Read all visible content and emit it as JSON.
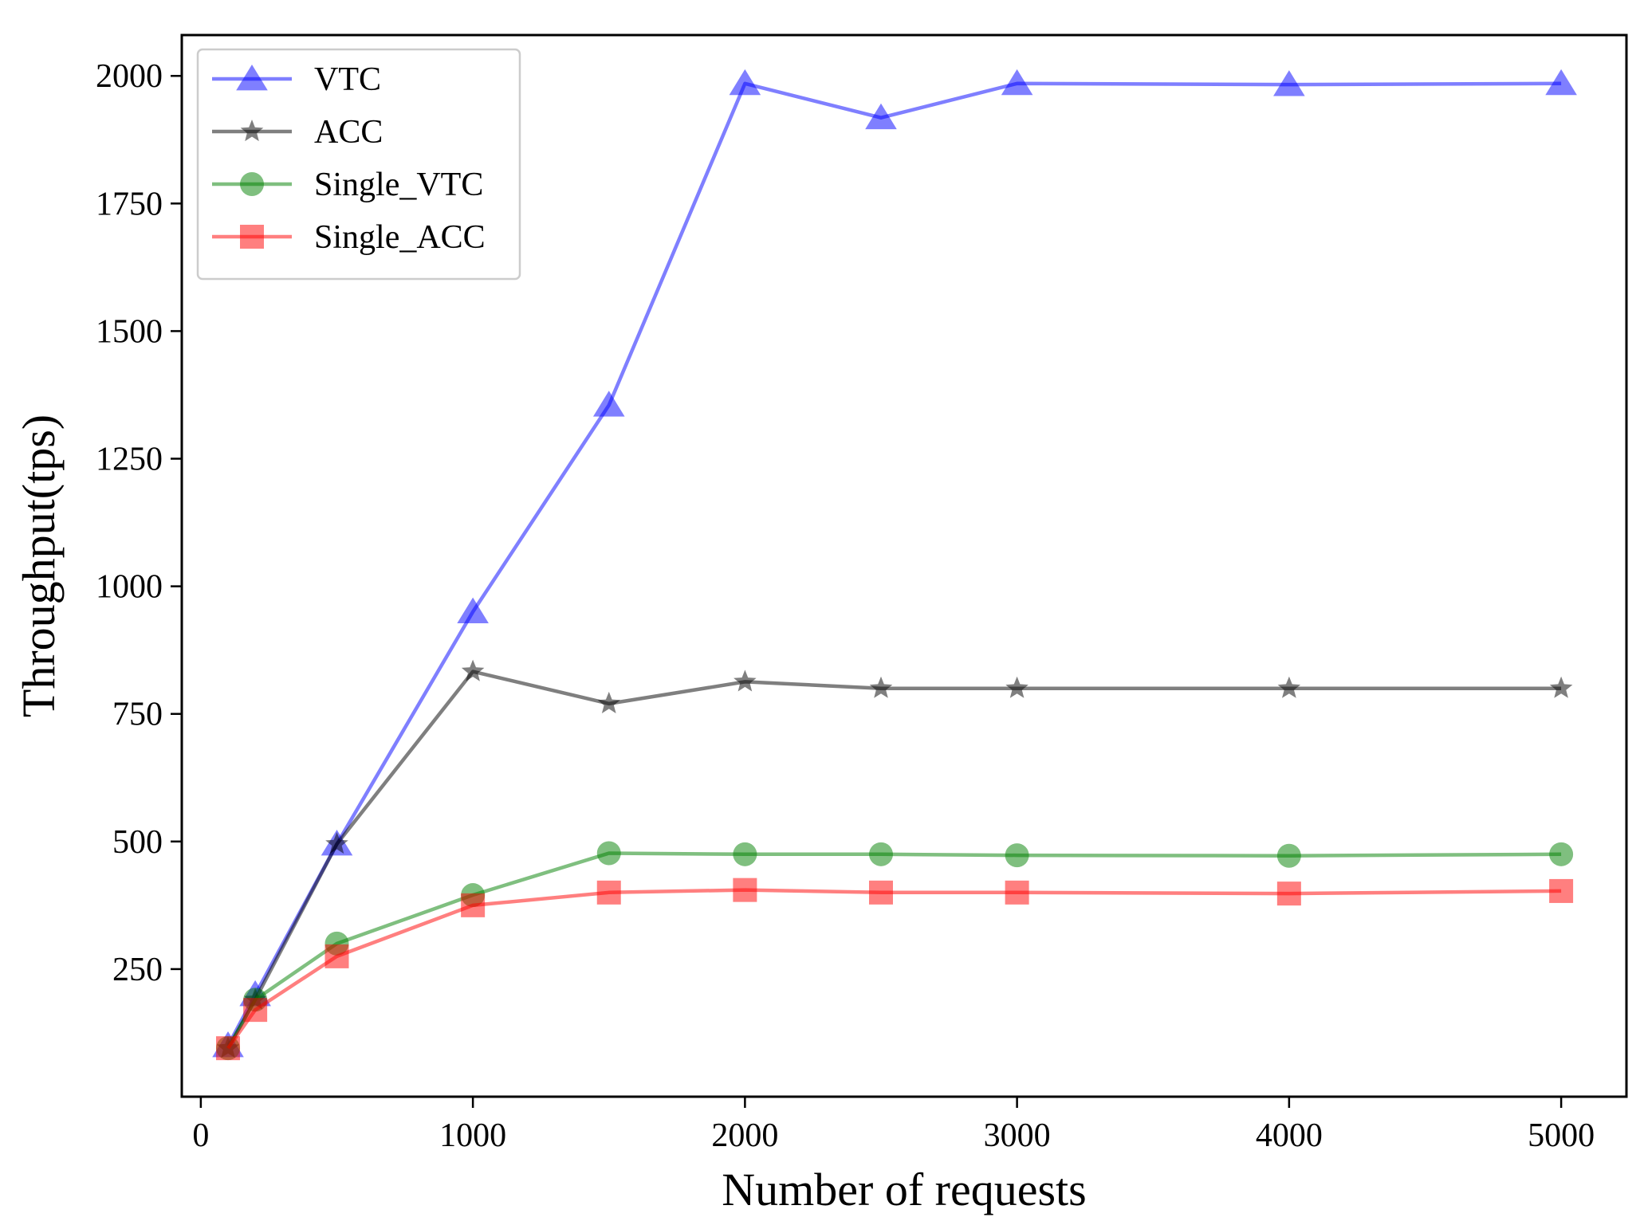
{
  "chart_data": {
    "type": "line",
    "title": "",
    "xlabel": "Number of requests",
    "ylabel": "Throughput(tps)",
    "xlim": [
      -70,
      5240
    ],
    "ylim": [
      0,
      2080
    ],
    "xticks": [
      0,
      1000,
      2000,
      3000,
      4000,
      5000
    ],
    "yticks": [
      250,
      500,
      750,
      1000,
      1250,
      1500,
      1750,
      2000
    ],
    "x": [
      100,
      200,
      500,
      1000,
      1500,
      2000,
      2500,
      3000,
      4000,
      5000
    ],
    "grid": false,
    "legend_position": "top-left",
    "series": [
      {
        "name": "VTC",
        "color": "#0000ff",
        "marker": "triangle",
        "values": [
          100,
          200,
          495,
          950,
          1355,
          1985,
          1918,
          1985,
          1983,
          1985
        ]
      },
      {
        "name": "ACC",
        "color": "#000000",
        "marker": "star",
        "values": [
          95,
          190,
          495,
          833,
          770,
          813,
          800,
          800,
          800,
          800
        ]
      },
      {
        "name": "Single_VTC",
        "color": "#008000",
        "marker": "circle",
        "values": [
          95,
          190,
          300,
          395,
          477,
          475,
          475,
          473,
          472,
          475
        ]
      },
      {
        "name": "Single_ACC",
        "color": "#ff0000",
        "marker": "square",
        "values": [
          95,
          170,
          275,
          375,
          400,
          405,
          400,
          400,
          398,
          403
        ]
      }
    ]
  }
}
